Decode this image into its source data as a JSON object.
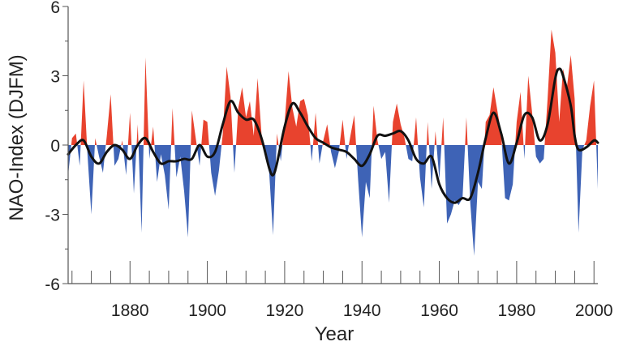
{
  "chart_data": {
    "type": "area",
    "title": "",
    "xlabel": "Year",
    "ylabel": "NAO-Index (DJFM)",
    "xlim": [
      1864,
      2001
    ],
    "ylim": [
      -6,
      6
    ],
    "x_ticks": [
      1880,
      1900,
      1920,
      1940,
      1960,
      1980,
      2000
    ],
    "y_ticks": [
      {
        "value": 6,
        "label": "6"
      },
      {
        "value": 3,
        "label": "3"
      },
      {
        "value": 0,
        "label": "0"
      },
      {
        "value": -3,
        "label": "-3"
      },
      {
        "value": -6,
        "label": "-6"
      }
    ],
    "grid": false,
    "legend": "none",
    "colors": {
      "positive": "#e8432e",
      "negative": "#3e63b6",
      "smooth": "#111111",
      "axis": "#555555"
    },
    "series": [
      {
        "values": [
          [
            1864,
            -1.3
          ],
          [
            1865,
            0.3
          ],
          [
            1866,
            0.5
          ],
          [
            1867,
            -0.9
          ],
          [
            1868,
            2.8
          ],
          [
            1869,
            -0.4
          ],
          [
            1870,
            -3.0
          ],
          [
            1871,
            0.3
          ],
          [
            1872,
            -0.5
          ],
          [
            1873,
            -1.2
          ],
          [
            1874,
            0.4
          ],
          [
            1875,
            2.2
          ],
          [
            1876,
            -0.9
          ],
          [
            1877,
            -0.6
          ],
          [
            1878,
            0.2
          ],
          [
            1879,
            -1.3
          ],
          [
            1880,
            1.4
          ],
          [
            1881,
            -2.1
          ],
          [
            1882,
            0.9
          ],
          [
            1883,
            -3.8
          ],
          [
            1884,
            3.8
          ],
          [
            1885,
            -0.6
          ],
          [
            1886,
            0.8
          ],
          [
            1887,
            -1.6
          ],
          [
            1888,
            -0.4
          ],
          [
            1889,
            -1.3
          ],
          [
            1890,
            -2.8
          ],
          [
            1891,
            1.6
          ],
          [
            1892,
            -1.4
          ],
          [
            1893,
            -0.5
          ],
          [
            1894,
            -2.0
          ],
          [
            1895,
            -4.0
          ],
          [
            1896,
            1.5
          ],
          [
            1897,
            0.3
          ],
          [
            1898,
            -0.9
          ],
          [
            1899,
            1.1
          ],
          [
            1900,
            1.0
          ],
          [
            1901,
            -1.2
          ],
          [
            1902,
            -2.2
          ],
          [
            1903,
            -1.1
          ],
          [
            1904,
            0.5
          ],
          [
            1905,
            3.4
          ],
          [
            1906,
            2.1
          ],
          [
            1907,
            -1.2
          ],
          [
            1908,
            1.6
          ],
          [
            1909,
            2.5
          ],
          [
            1910,
            1.2
          ],
          [
            1911,
            1.9
          ],
          [
            1912,
            0.4
          ],
          [
            1913,
            2.9
          ],
          [
            1914,
            0.5
          ],
          [
            1915,
            -0.5
          ],
          [
            1916,
            -1.2
          ],
          [
            1917,
            -3.9
          ],
          [
            1918,
            0.5
          ],
          [
            1919,
            -0.7
          ],
          [
            1920,
            1.0
          ],
          [
            1921,
            3.2
          ],
          [
            1922,
            1.6
          ],
          [
            1923,
            0.8
          ],
          [
            1924,
            1.9
          ],
          [
            1925,
            2.0
          ],
          [
            1926,
            1.3
          ],
          [
            1927,
            -0.7
          ],
          [
            1928,
            1.4
          ],
          [
            1929,
            -0.8
          ],
          [
            1930,
            0.2
          ],
          [
            1931,
            0.9
          ],
          [
            1932,
            -0.3
          ],
          [
            1933,
            -1.0
          ],
          [
            1934,
            -0.3
          ],
          [
            1935,
            1.1
          ],
          [
            1936,
            -0.6
          ],
          [
            1937,
            0.4
          ],
          [
            1938,
            1.3
          ],
          [
            1939,
            -1.5
          ],
          [
            1940,
            -4.0
          ],
          [
            1941,
            -1.6
          ],
          [
            1942,
            -2.3
          ],
          [
            1943,
            1.7
          ],
          [
            1944,
            0.2
          ],
          [
            1945,
            -0.6
          ],
          [
            1946,
            -0.3
          ],
          [
            1947,
            -2.5
          ],
          [
            1948,
            1.0
          ],
          [
            1949,
            1.8
          ],
          [
            1950,
            0.9
          ],
          [
            1951,
            0.3
          ],
          [
            1952,
            -0.6
          ],
          [
            1953,
            -0.7
          ],
          [
            1954,
            1.2
          ],
          [
            1955,
            -1.4
          ],
          [
            1956,
            -2.7
          ],
          [
            1957,
            1.0
          ],
          [
            1958,
            -1.9
          ],
          [
            1959,
            0.6
          ],
          [
            1960,
            -1.5
          ],
          [
            1961,
            1.2
          ],
          [
            1962,
            -3.4
          ],
          [
            1963,
            -3.0
          ],
          [
            1964,
            -2.4
          ],
          [
            1965,
            -2.6
          ],
          [
            1966,
            -2.3
          ],
          [
            1967,
            1.2
          ],
          [
            1968,
            -2.5
          ],
          [
            1969,
            -4.8
          ],
          [
            1970,
            -1.6
          ],
          [
            1971,
            -1.9
          ],
          [
            1972,
            1.0
          ],
          [
            1973,
            1.3
          ],
          [
            1974,
            2.5
          ],
          [
            1975,
            1.5
          ],
          [
            1976,
            0.5
          ],
          [
            1977,
            -2.3
          ],
          [
            1978,
            -2.4
          ],
          [
            1979,
            -1.7
          ],
          [
            1980,
            1.0
          ],
          [
            1981,
            2.3
          ],
          [
            1982,
            -0.6
          ],
          [
            1983,
            3.0
          ],
          [
            1984,
            1.4
          ],
          [
            1985,
            -0.5
          ],
          [
            1986,
            -0.8
          ],
          [
            1987,
            -0.6
          ],
          [
            1988,
            2.0
          ],
          [
            1989,
            5.0
          ],
          [
            1990,
            4.0
          ],
          [
            1991,
            1.0
          ],
          [
            1992,
            3.3
          ],
          [
            1993,
            2.5
          ],
          [
            1994,
            3.9
          ],
          [
            1995,
            2.0
          ],
          [
            1996,
            -3.8
          ],
          [
            1997,
            -0.2
          ],
          [
            1998,
            0.2
          ],
          [
            1999,
            1.7
          ],
          [
            2000,
            2.8
          ],
          [
            2001,
            -1.9
          ]
        ]
      },
      {
        "type": "line",
        "values": [
          [
            1864,
            -0.4
          ],
          [
            1866,
            0.0
          ],
          [
            1868,
            0.2
          ],
          [
            1870,
            -0.5
          ],
          [
            1872,
            -0.8
          ],
          [
            1874,
            -0.3
          ],
          [
            1876,
            0.0
          ],
          [
            1878,
            -0.2
          ],
          [
            1880,
            -0.6
          ],
          [
            1882,
            0.0
          ],
          [
            1884,
            0.3
          ],
          [
            1886,
            -0.3
          ],
          [
            1888,
            -0.8
          ],
          [
            1890,
            -0.7
          ],
          [
            1892,
            -0.7
          ],
          [
            1894,
            -0.6
          ],
          [
            1896,
            -0.6
          ],
          [
            1898,
            0.0
          ],
          [
            1900,
            -0.5
          ],
          [
            1902,
            -0.3
          ],
          [
            1904,
            0.9
          ],
          [
            1906,
            1.9
          ],
          [
            1908,
            1.4
          ],
          [
            1910,
            1.1
          ],
          [
            1912,
            1.1
          ],
          [
            1914,
            0.3
          ],
          [
            1916,
            -1.0
          ],
          [
            1917,
            -1.3
          ],
          [
            1918,
            -0.8
          ],
          [
            1920,
            0.8
          ],
          [
            1922,
            1.8
          ],
          [
            1924,
            1.4
          ],
          [
            1926,
            0.8
          ],
          [
            1928,
            0.3
          ],
          [
            1930,
            0.1
          ],
          [
            1932,
            -0.1
          ],
          [
            1934,
            -0.2
          ],
          [
            1936,
            -0.3
          ],
          [
            1938,
            -0.6
          ],
          [
            1940,
            -0.9
          ],
          [
            1942,
            -0.4
          ],
          [
            1944,
            0.4
          ],
          [
            1946,
            0.4
          ],
          [
            1948,
            0.5
          ],
          [
            1950,
            0.6
          ],
          [
            1952,
            0.2
          ],
          [
            1954,
            -0.6
          ],
          [
            1956,
            -0.8
          ],
          [
            1958,
            -0.5
          ],
          [
            1960,
            -1.7
          ],
          [
            1962,
            -2.3
          ],
          [
            1964,
            -2.5
          ],
          [
            1966,
            -2.3
          ],
          [
            1968,
            -2.3
          ],
          [
            1970,
            -1.2
          ],
          [
            1972,
            0.3
          ],
          [
            1974,
            1.4
          ],
          [
            1976,
            0.5
          ],
          [
            1978,
            -0.8
          ],
          [
            1980,
            0.1
          ],
          [
            1982,
            1.3
          ],
          [
            1984,
            1.2
          ],
          [
            1986,
            0.2
          ],
          [
            1988,
            0.9
          ],
          [
            1990,
            2.9
          ],
          [
            1991,
            3.3
          ],
          [
            1992,
            3.0
          ],
          [
            1994,
            1.7
          ],
          [
            1995,
            0.4
          ],
          [
            1996,
            -0.2
          ],
          [
            1998,
            -0.1
          ],
          [
            2000,
            0.2
          ],
          [
            2001,
            0.1
          ]
        ]
      }
    ]
  }
}
